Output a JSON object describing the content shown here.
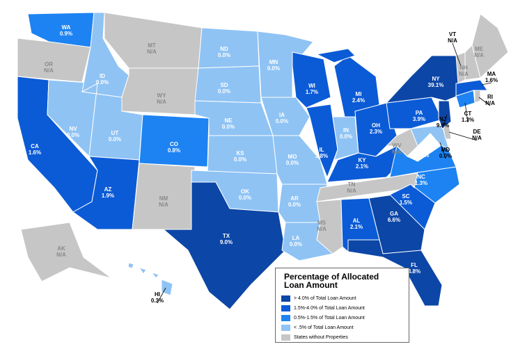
{
  "map": {
    "legend": {
      "title": "Percentage of Allocated Loan Amount",
      "items": [
        {
          "label": "> 4.0%  of Total Loan Amount",
          "color": "#0c46a6"
        },
        {
          "label": "1.5%-4.0% of Total Loan Amount",
          "color": "#0b5bd6"
        },
        {
          "label": "0.5%-1.5% of Total Loan Amount",
          "color": "#1d83f2"
        },
        {
          "label": "< .5% of Total Loan Amount",
          "color": "#8fc3f4"
        },
        {
          "label": "States without Properties",
          "color": "#c6c6c6"
        }
      ]
    },
    "states": [
      {
        "abbr": "WA",
        "value": "0.9%",
        "tier": 2
      },
      {
        "abbr": "OR",
        "value": "N/A",
        "tier": 4
      },
      {
        "abbr": "CA",
        "value": "1.6%",
        "tier": 1
      },
      {
        "abbr": "NV",
        "value": "0.0%",
        "tier": 3
      },
      {
        "abbr": "ID",
        "value": "0.0%",
        "tier": 3
      },
      {
        "abbr": "MT",
        "value": "N/A",
        "tier": 4
      },
      {
        "abbr": "WY",
        "value": "N/A",
        "tier": 4
      },
      {
        "abbr": "UT",
        "value": "0.0%",
        "tier": 3
      },
      {
        "abbr": "CO",
        "value": "0.8%",
        "tier": 2
      },
      {
        "abbr": "AZ",
        "value": "1.9%",
        "tier": 1
      },
      {
        "abbr": "NM",
        "value": "N/A",
        "tier": 4
      },
      {
        "abbr": "ND",
        "value": "0.0%",
        "tier": 3
      },
      {
        "abbr": "SD",
        "value": "0.0%",
        "tier": 3
      },
      {
        "abbr": "NE",
        "value": "0.0%",
        "tier": 3
      },
      {
        "abbr": "KS",
        "value": "0.0%",
        "tier": 3
      },
      {
        "abbr": "OK",
        "value": "0.0%",
        "tier": 3
      },
      {
        "abbr": "TX",
        "value": "9.0%",
        "tier": 0
      },
      {
        "abbr": "MN",
        "value": "0.0%",
        "tier": 3
      },
      {
        "abbr": "IA",
        "value": "0.0%",
        "tier": 3
      },
      {
        "abbr": "MO",
        "value": "0.0%",
        "tier": 3
      },
      {
        "abbr": "AR",
        "value": "0.0%",
        "tier": 3
      },
      {
        "abbr": "LA",
        "value": "0.0%",
        "tier": 3
      },
      {
        "abbr": "WI",
        "value": "1.7%",
        "tier": 1
      },
      {
        "abbr": "IL",
        "value": "3.8%",
        "tier": 1
      },
      {
        "abbr": "MI",
        "value": "2.4%",
        "tier": 1
      },
      {
        "abbr": "IN",
        "value": "0.0%",
        "tier": 3
      },
      {
        "abbr": "OH",
        "value": "2.3%",
        "tier": 1
      },
      {
        "abbr": "KY",
        "value": "2.1%",
        "tier": 1
      },
      {
        "abbr": "TN",
        "value": "N/A",
        "tier": 4
      },
      {
        "abbr": "MS",
        "value": "N/A",
        "tier": 4
      },
      {
        "abbr": "AL",
        "value": "2.1%",
        "tier": 1
      },
      {
        "abbr": "GA",
        "value": "6.6%",
        "tier": 0
      },
      {
        "abbr": "FL",
        "value": "4.8%",
        "tier": 0
      },
      {
        "abbr": "SC",
        "value": "1.5%",
        "tier": 1
      },
      {
        "abbr": "NC",
        "value": "1.3%",
        "tier": 2
      },
      {
        "abbr": "VA",
        "value": "1.0%",
        "tier": 2
      },
      {
        "abbr": "WV",
        "value": "N/A",
        "tier": 4
      },
      {
        "abbr": "PA",
        "value": "3.9%",
        "tier": 1
      },
      {
        "abbr": "MD",
        "value": "0.0%",
        "tier": 3
      },
      {
        "abbr": "DE",
        "value": "N/A",
        "tier": 4
      },
      {
        "abbr": "NJ",
        "value": "9.6%",
        "tier": 0
      },
      {
        "abbr": "NY",
        "value": "39.1%",
        "tier": 0
      },
      {
        "abbr": "CT",
        "value": "1.3%",
        "tier": 2
      },
      {
        "abbr": "RI",
        "value": "N/A",
        "tier": 4
      },
      {
        "abbr": "MA",
        "value": "1.6%",
        "tier": 1
      },
      {
        "abbr": "VT",
        "value": "N/A",
        "tier": 4
      },
      {
        "abbr": "NH",
        "value": "N/A",
        "tier": 4
      },
      {
        "abbr": "ME",
        "value": "N/A",
        "tier": 4
      },
      {
        "abbr": "AK",
        "value": "N/A",
        "tier": 4
      },
      {
        "abbr": "HI",
        "value": "0.3%",
        "tier": 3
      }
    ]
  }
}
